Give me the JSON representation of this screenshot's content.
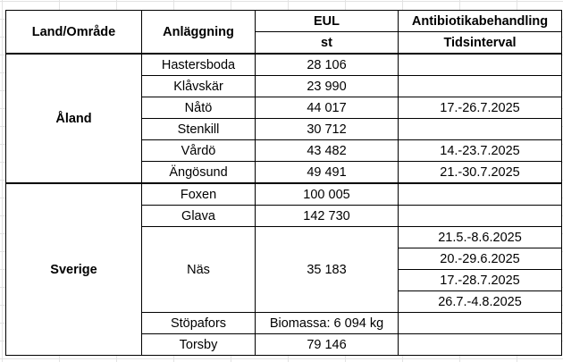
{
  "headers": {
    "region": "Land/Område",
    "facility": "Anläggning",
    "eul": "EUL",
    "eul_unit": "st",
    "antibiotic": "Antibiotikabehandling",
    "antibiotic_sub": "Tidsinterval"
  },
  "regions": [
    {
      "name": "Åland",
      "rows": [
        {
          "facility": "Hastersboda",
          "eul": "28 106",
          "interval": ""
        },
        {
          "facility": "Klåvskär",
          "eul": "23 990",
          "interval": ""
        },
        {
          "facility": "Nåtö",
          "eul": "44 017",
          "interval": "17.-26.7.2025"
        },
        {
          "facility": "Stenkill",
          "eul": "30 712",
          "interval": ""
        },
        {
          "facility": "Vårdö",
          "eul": "43 482",
          "interval": "14.-23.7.2025"
        },
        {
          "facility": "Ängösund",
          "eul": "49 491",
          "interval": "21.-30.7.2025"
        }
      ]
    },
    {
      "name": "Sverige",
      "rows": [
        {
          "facility": "Foxen",
          "eul": "100 005",
          "interval": ""
        },
        {
          "facility": "Glava",
          "eul": "142 730",
          "interval": ""
        },
        {
          "facility": "Näs",
          "eul": "35 183",
          "intervals": [
            "21.5.-8.6.2025",
            "20.-29.6.2025",
            "17.-28.7.2025",
            "26.7.-4.8.2025"
          ]
        },
        {
          "facility": "Stöpafors",
          "eul": "Biomassa: 6 094 kg",
          "interval": ""
        },
        {
          "facility": "Torsby",
          "eul": "79 146",
          "interval": ""
        }
      ]
    }
  ]
}
